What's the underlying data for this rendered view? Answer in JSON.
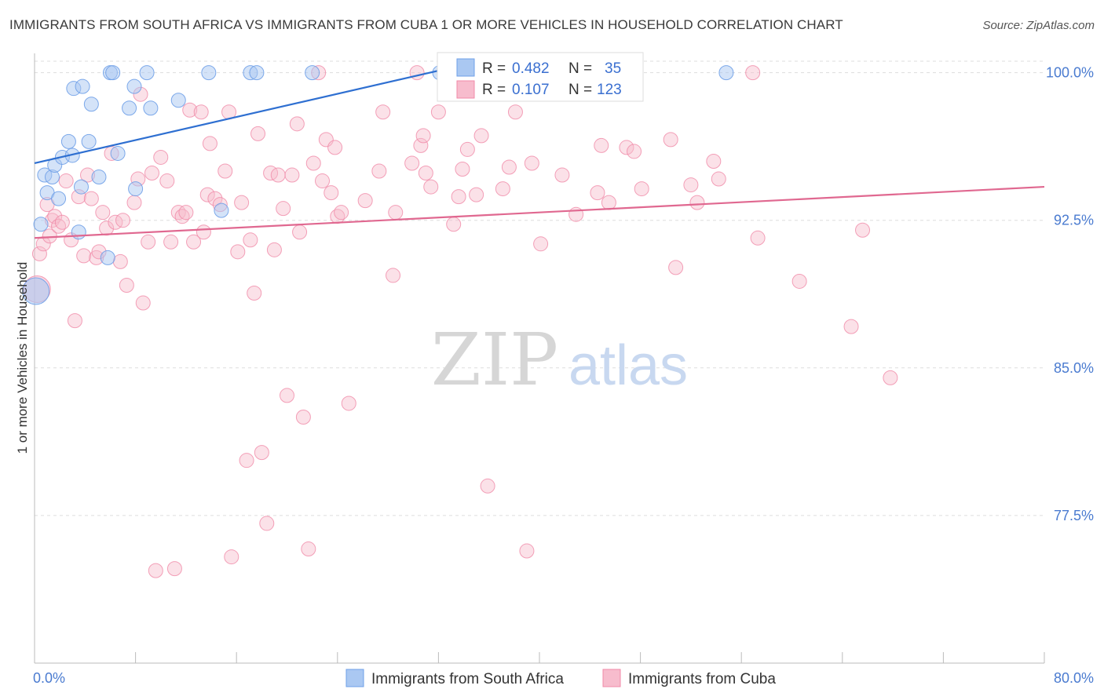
{
  "title": "IMMIGRANTS FROM SOUTH AFRICA VS IMMIGRANTS FROM CUBA 1 OR MORE VEHICLES IN HOUSEHOLD CORRELATION CHART",
  "source": "Source: ZipAtlas.com",
  "watermark": {
    "zip": "ZIP",
    "atlas": "atlas"
  },
  "colors": {
    "south_africa": "#6fa0e8",
    "south_africa_fill": "#aac8f2",
    "south_africa_line": "#2e6fd1",
    "cuba": "#f08aa8",
    "cuba_fill": "#f7bccd",
    "cuba_line": "#e06890",
    "axis_text": "#4a7bd0",
    "grid": "#dddddd"
  },
  "legend": {
    "rows": [
      {
        "r_label": "R = ",
        "r_value": "0.482",
        "n_label": "N = ",
        "n_value": "35"
      },
      {
        "r_label": "R = ",
        "r_value": "0.107",
        "n_label": "N = ",
        "n_value": "123"
      }
    ]
  },
  "chart_data": {
    "type": "scatter",
    "title": "IMMIGRANTS FROM SOUTH AFRICA VS IMMIGRANTS FROM CUBA 1 OR MORE VEHICLES IN HOUSEHOLD CORRELATION CHART",
    "xlabel": "",
    "ylabel": "1 or more Vehicles in Household",
    "xlim": [
      0,
      80
    ],
    "ylim": [
      70,
      101.5
    ],
    "x_tick_labels": [
      "0.0%",
      "80.0%"
    ],
    "y_ticks": [
      77.5,
      85.0,
      92.5,
      100.0
    ],
    "y_tick_labels": [
      "77.5%",
      "85.0%",
      "92.5%",
      "100.0%"
    ],
    "grid": true,
    "legend_position": "top-center",
    "series": [
      {
        "name": "Immigrants from South Africa",
        "r": 0.482,
        "n": 35,
        "trend": {
          "x": [
            0,
            32
          ],
          "y": [
            95.4,
            100.1
          ]
        },
        "points": [
          {
            "x": 0.5,
            "y": 92.3
          },
          {
            "x": 0.8,
            "y": 94.8
          },
          {
            "x": 1.0,
            "y": 93.9
          },
          {
            "x": 1.4,
            "y": 94.7
          },
          {
            "x": 1.6,
            "y": 95.3
          },
          {
            "x": 1.9,
            "y": 93.6
          },
          {
            "x": 2.2,
            "y": 95.7
          },
          {
            "x": 2.7,
            "y": 96.5
          },
          {
            "x": 3.0,
            "y": 95.8
          },
          {
            "x": 3.1,
            "y": 99.2
          },
          {
            "x": 3.5,
            "y": 91.9
          },
          {
            "x": 3.8,
            "y": 99.3
          },
          {
            "x": 3.7,
            "y": 94.2
          },
          {
            "x": 4.3,
            "y": 96.5
          },
          {
            "x": 4.5,
            "y": 98.4
          },
          {
            "x": 5.1,
            "y": 94.7
          },
          {
            "x": 5.8,
            "y": 90.6
          },
          {
            "x": 6.0,
            "y": 100.0
          },
          {
            "x": 6.2,
            "y": 100.0
          },
          {
            "x": 6.6,
            "y": 95.9
          },
          {
            "x": 7.5,
            "y": 98.2
          },
          {
            "x": 7.9,
            "y": 99.3
          },
          {
            "x": 8.0,
            "y": 94.1
          },
          {
            "x": 8.9,
            "y": 100.0
          },
          {
            "x": 9.2,
            "y": 98.2
          },
          {
            "x": 11.4,
            "y": 98.6
          },
          {
            "x": 13.8,
            "y": 100.0
          },
          {
            "x": 14.8,
            "y": 93.0
          },
          {
            "x": 17.1,
            "y": 100.0
          },
          {
            "x": 17.6,
            "y": 100.0
          },
          {
            "x": 22.0,
            "y": 100.0
          },
          {
            "x": 32.1,
            "y": 100.0
          },
          {
            "x": 34.4,
            "y": 100.0
          },
          {
            "x": 54.8,
            "y": 100.0
          },
          {
            "x": 0.1,
            "y": 88.9
          }
        ]
      },
      {
        "name": "Immigrants from Cuba",
        "r": 0.107,
        "n": 123,
        "trend": {
          "x": [
            0,
            80
          ],
          "y": [
            91.6,
            94.2
          ]
        },
        "points": [
          {
            "x": 0.2,
            "y": 89.0
          },
          {
            "x": 0.4,
            "y": 90.8
          },
          {
            "x": 0.7,
            "y": 91.3
          },
          {
            "x": 1.0,
            "y": 93.3
          },
          {
            "x": 1.2,
            "y": 91.7
          },
          {
            "x": 1.4,
            "y": 92.5
          },
          {
            "x": 1.6,
            "y": 92.7
          },
          {
            "x": 1.9,
            "y": 92.2
          },
          {
            "x": 2.2,
            "y": 92.4
          },
          {
            "x": 2.5,
            "y": 94.5
          },
          {
            "x": 2.9,
            "y": 91.5
          },
          {
            "x": 3.2,
            "y": 87.4
          },
          {
            "x": 3.5,
            "y": 93.7
          },
          {
            "x": 3.9,
            "y": 90.7
          },
          {
            "x": 4.2,
            "y": 94.8
          },
          {
            "x": 4.5,
            "y": 93.6
          },
          {
            "x": 4.9,
            "y": 90.6
          },
          {
            "x": 5.1,
            "y": 90.9
          },
          {
            "x": 5.4,
            "y": 92.9
          },
          {
            "x": 5.7,
            "y": 92.1
          },
          {
            "x": 6.1,
            "y": 95.9
          },
          {
            "x": 6.4,
            "y": 92.4
          },
          {
            "x": 6.8,
            "y": 90.4
          },
          {
            "x": 7.0,
            "y": 92.5
          },
          {
            "x": 7.3,
            "y": 89.2
          },
          {
            "x": 7.9,
            "y": 93.4
          },
          {
            "x": 8.2,
            "y": 94.6
          },
          {
            "x": 8.4,
            "y": 98.9
          },
          {
            "x": 8.6,
            "y": 88.3
          },
          {
            "x": 9.0,
            "y": 91.4
          },
          {
            "x": 9.3,
            "y": 94.9
          },
          {
            "x": 9.6,
            "y": 74.7
          },
          {
            "x": 10.0,
            "y": 95.7
          },
          {
            "x": 10.5,
            "y": 94.5
          },
          {
            "x": 10.8,
            "y": 91.4
          },
          {
            "x": 11.1,
            "y": 74.8
          },
          {
            "x": 11.4,
            "y": 92.9
          },
          {
            "x": 11.7,
            "y": 92.7
          },
          {
            "x": 12.0,
            "y": 92.9
          },
          {
            "x": 12.3,
            "y": 98.1
          },
          {
            "x": 12.6,
            "y": 91.4
          },
          {
            "x": 13.2,
            "y": 98.0
          },
          {
            "x": 13.4,
            "y": 91.9
          },
          {
            "x": 13.7,
            "y": 93.8
          },
          {
            "x": 13.9,
            "y": 96.4
          },
          {
            "x": 14.3,
            "y": 93.6
          },
          {
            "x": 14.7,
            "y": 93.3
          },
          {
            "x": 15.1,
            "y": 95.0
          },
          {
            "x": 15.4,
            "y": 98.0
          },
          {
            "x": 15.6,
            "y": 75.4
          },
          {
            "x": 16.1,
            "y": 90.9
          },
          {
            "x": 16.4,
            "y": 93.4
          },
          {
            "x": 16.8,
            "y": 80.3
          },
          {
            "x": 17.1,
            "y": 91.5
          },
          {
            "x": 17.4,
            "y": 88.8
          },
          {
            "x": 17.7,
            "y": 96.9
          },
          {
            "x": 18.0,
            "y": 80.7
          },
          {
            "x": 18.4,
            "y": 77.1
          },
          {
            "x": 18.7,
            "y": 94.9
          },
          {
            "x": 19.0,
            "y": 91.0
          },
          {
            "x": 19.3,
            "y": 94.8
          },
          {
            "x": 19.7,
            "y": 93.1
          },
          {
            "x": 20.0,
            "y": 83.6
          },
          {
            "x": 20.4,
            "y": 94.8
          },
          {
            "x": 20.8,
            "y": 97.4
          },
          {
            "x": 21.0,
            "y": 91.9
          },
          {
            "x": 21.3,
            "y": 82.5
          },
          {
            "x": 21.7,
            "y": 75.8
          },
          {
            "x": 22.1,
            "y": 95.4
          },
          {
            "x": 22.5,
            "y": 100.0
          },
          {
            "x": 22.8,
            "y": 94.5
          },
          {
            "x": 23.1,
            "y": 96.6
          },
          {
            "x": 23.5,
            "y": 93.9
          },
          {
            "x": 23.8,
            "y": 96.2
          },
          {
            "x": 24.0,
            "y": 92.7
          },
          {
            "x": 24.3,
            "y": 92.9
          },
          {
            "x": 24.9,
            "y": 83.2
          },
          {
            "x": 26.2,
            "y": 93.5
          },
          {
            "x": 27.3,
            "y": 95.0
          },
          {
            "x": 27.6,
            "y": 98.0
          },
          {
            "x": 28.4,
            "y": 89.7
          },
          {
            "x": 28.6,
            "y": 92.9
          },
          {
            "x": 29.9,
            "y": 95.4
          },
          {
            "x": 30.3,
            "y": 100.0
          },
          {
            "x": 30.6,
            "y": 96.3
          },
          {
            "x": 30.8,
            "y": 96.8
          },
          {
            "x": 31.0,
            "y": 94.9
          },
          {
            "x": 31.4,
            "y": 94.2
          },
          {
            "x": 32.0,
            "y": 98.0
          },
          {
            "x": 32.5,
            "y": 100.0
          },
          {
            "x": 33.2,
            "y": 92.3
          },
          {
            "x": 33.6,
            "y": 93.7
          },
          {
            "x": 33.9,
            "y": 95.1
          },
          {
            "x": 34.3,
            "y": 96.1
          },
          {
            "x": 35.0,
            "y": 93.8
          },
          {
            "x": 35.4,
            "y": 96.8
          },
          {
            "x": 35.9,
            "y": 79.0
          },
          {
            "x": 37.1,
            "y": 94.1
          },
          {
            "x": 37.6,
            "y": 95.2
          },
          {
            "x": 38.1,
            "y": 98.0
          },
          {
            "x": 39.0,
            "y": 75.7
          },
          {
            "x": 39.4,
            "y": 95.4
          },
          {
            "x": 40.1,
            "y": 91.3
          },
          {
            "x": 41.8,
            "y": 94.8
          },
          {
            "x": 42.9,
            "y": 92.8
          },
          {
            "x": 44.6,
            "y": 93.9
          },
          {
            "x": 44.9,
            "y": 96.3
          },
          {
            "x": 45.5,
            "y": 93.4
          },
          {
            "x": 46.9,
            "y": 96.2
          },
          {
            "x": 47.5,
            "y": 96.0
          },
          {
            "x": 48.1,
            "y": 94.1
          },
          {
            "x": 50.4,
            "y": 96.6
          },
          {
            "x": 50.8,
            "y": 90.1
          },
          {
            "x": 52.0,
            "y": 94.3
          },
          {
            "x": 52.5,
            "y": 93.4
          },
          {
            "x": 53.8,
            "y": 95.5
          },
          {
            "x": 54.2,
            "y": 94.6
          },
          {
            "x": 56.9,
            "y": 100.0
          },
          {
            "x": 57.3,
            "y": 91.6
          },
          {
            "x": 60.6,
            "y": 89.4
          },
          {
            "x": 64.7,
            "y": 87.1
          },
          {
            "x": 65.6,
            "y": 92.0
          },
          {
            "x": 67.8,
            "y": 84.5
          }
        ]
      }
    ]
  }
}
